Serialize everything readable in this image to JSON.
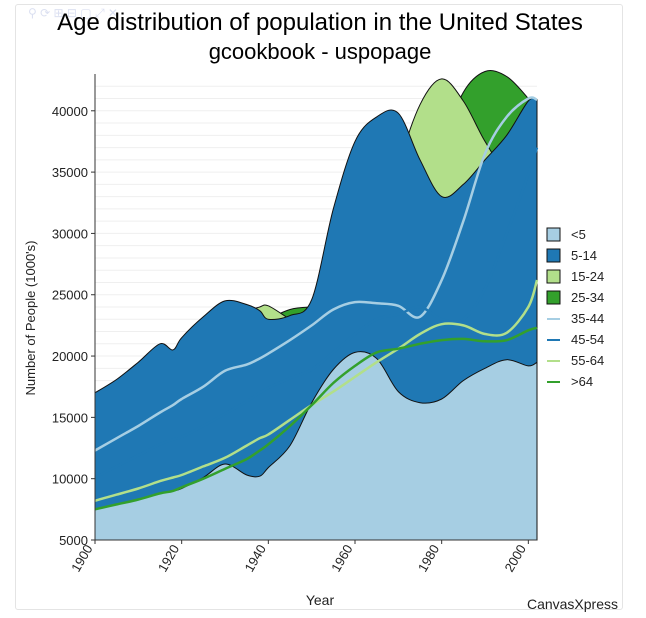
{
  "chart_data": {
    "type": "area",
    "title": "Age distribution of population in the United States",
    "subtitle": "gcookbook - uspopage",
    "xlabel": "Year",
    "ylabel": "Number of People (1000's)",
    "xlim": [
      1900,
      2002
    ],
    "ylim": [
      5000,
      43000
    ],
    "x_ticks": [
      "1900",
      "1920",
      "1940",
      "1960",
      "1980",
      "2000"
    ],
    "y_ticks": [
      "5000",
      "10000",
      "15000",
      "20000",
      "25000",
      "30000",
      "35000",
      "40000"
    ],
    "grid": true,
    "legend_position": "right",
    "x": [
      1900,
      1905,
      1910,
      1915,
      1918,
      1920,
      1925,
      1930,
      1935,
      1938,
      1940,
      1945,
      1950,
      1955,
      1960,
      1965,
      1970,
      1975,
      1980,
      1985,
      1990,
      1995,
      2000,
      2002
    ],
    "series": [
      {
        "name": "<5",
        "kind": "area",
        "color": "#a6cee3",
        "values": [
          7500,
          7900,
          8300,
          8800,
          9000,
          9200,
          10100,
          11200,
          10300,
          10200,
          10900,
          12700,
          16200,
          18900,
          20300,
          19800,
          17100,
          16200,
          16500,
          18000,
          19000,
          19700,
          19200,
          19500
        ]
      },
      {
        "name": "5-14",
        "kind": "area",
        "color": "#1f78b4",
        "values": [
          17000,
          18100,
          19500,
          21000,
          20500,
          21500,
          23200,
          24500,
          24200,
          23700,
          23000,
          23300,
          24600,
          32000,
          37500,
          39500,
          39800,
          36000,
          33000,
          34000,
          36000,
          38000,
          40800,
          40900
        ]
      },
      {
        "name": "15-24",
        "kind": "area",
        "color": "#b2df8a",
        "values": [
          14600,
          16500,
          17800,
          18700,
          18200,
          19200,
          21000,
          22600,
          23600,
          24000,
          24100,
          23000,
          22000,
          22800,
          24300,
          29000,
          35500,
          40500,
          42600,
          40800,
          37500,
          35000,
          34800,
          35000
        ]
      },
      {
        "name": "25-34",
        "kind": "area",
        "color": "#33a02c",
        "values": [
          11000,
          12600,
          14200,
          15500,
          16000,
          16400,
          18200,
          20000,
          21800,
          22600,
          23000,
          23800,
          24000,
          24000,
          22800,
          22500,
          24500,
          30000,
          37000,
          41500,
          43200,
          42800,
          41000,
          40000
        ]
      },
      {
        "name": "35-44",
        "kind": "line",
        "color": "#a6cee3",
        "values": [
          12300,
          13300,
          14300,
          15400,
          16000,
          16500,
          17500,
          18800,
          19300,
          19800,
          20200,
          21300,
          22500,
          23800,
          24400,
          24300,
          24100,
          23200,
          26200,
          31000,
          36500,
          39500,
          41000,
          40900
        ]
      },
      {
        "name": "45-54",
        "kind": "line",
        "color": "#1f78b4",
        "values": [
          10100,
          11000,
          11900,
          12800,
          13200,
          13400,
          14300,
          15300,
          16300,
          17000,
          17400,
          18200,
          18900,
          20300,
          21800,
          23000,
          23400,
          24000,
          23000,
          23000,
          25500,
          30000,
          34800,
          37000
        ]
      },
      {
        "name": "55-64",
        "kind": "line",
        "color": "#b2df8a",
        "values": [
          8200,
          8700,
          9200,
          9800,
          10100,
          10300,
          11000,
          11700,
          12700,
          13300,
          13600,
          14800,
          16000,
          17100,
          18300,
          19500,
          20600,
          21800,
          22600,
          22500,
          21800,
          21900,
          24000,
          26200
        ]
      },
      {
        "name": ">64",
        "kind": "line",
        "color": "#33a02c",
        "values": [
          7500,
          7900,
          8300,
          8800,
          9000,
          9300,
          10000,
          10800,
          11600,
          12300,
          12800,
          14300,
          16000,
          17800,
          19200,
          20300,
          20600,
          21000,
          21300,
          21400,
          21200,
          21300,
          22100,
          22300
        ]
      }
    ],
    "watermark": "CanvasXpress"
  }
}
